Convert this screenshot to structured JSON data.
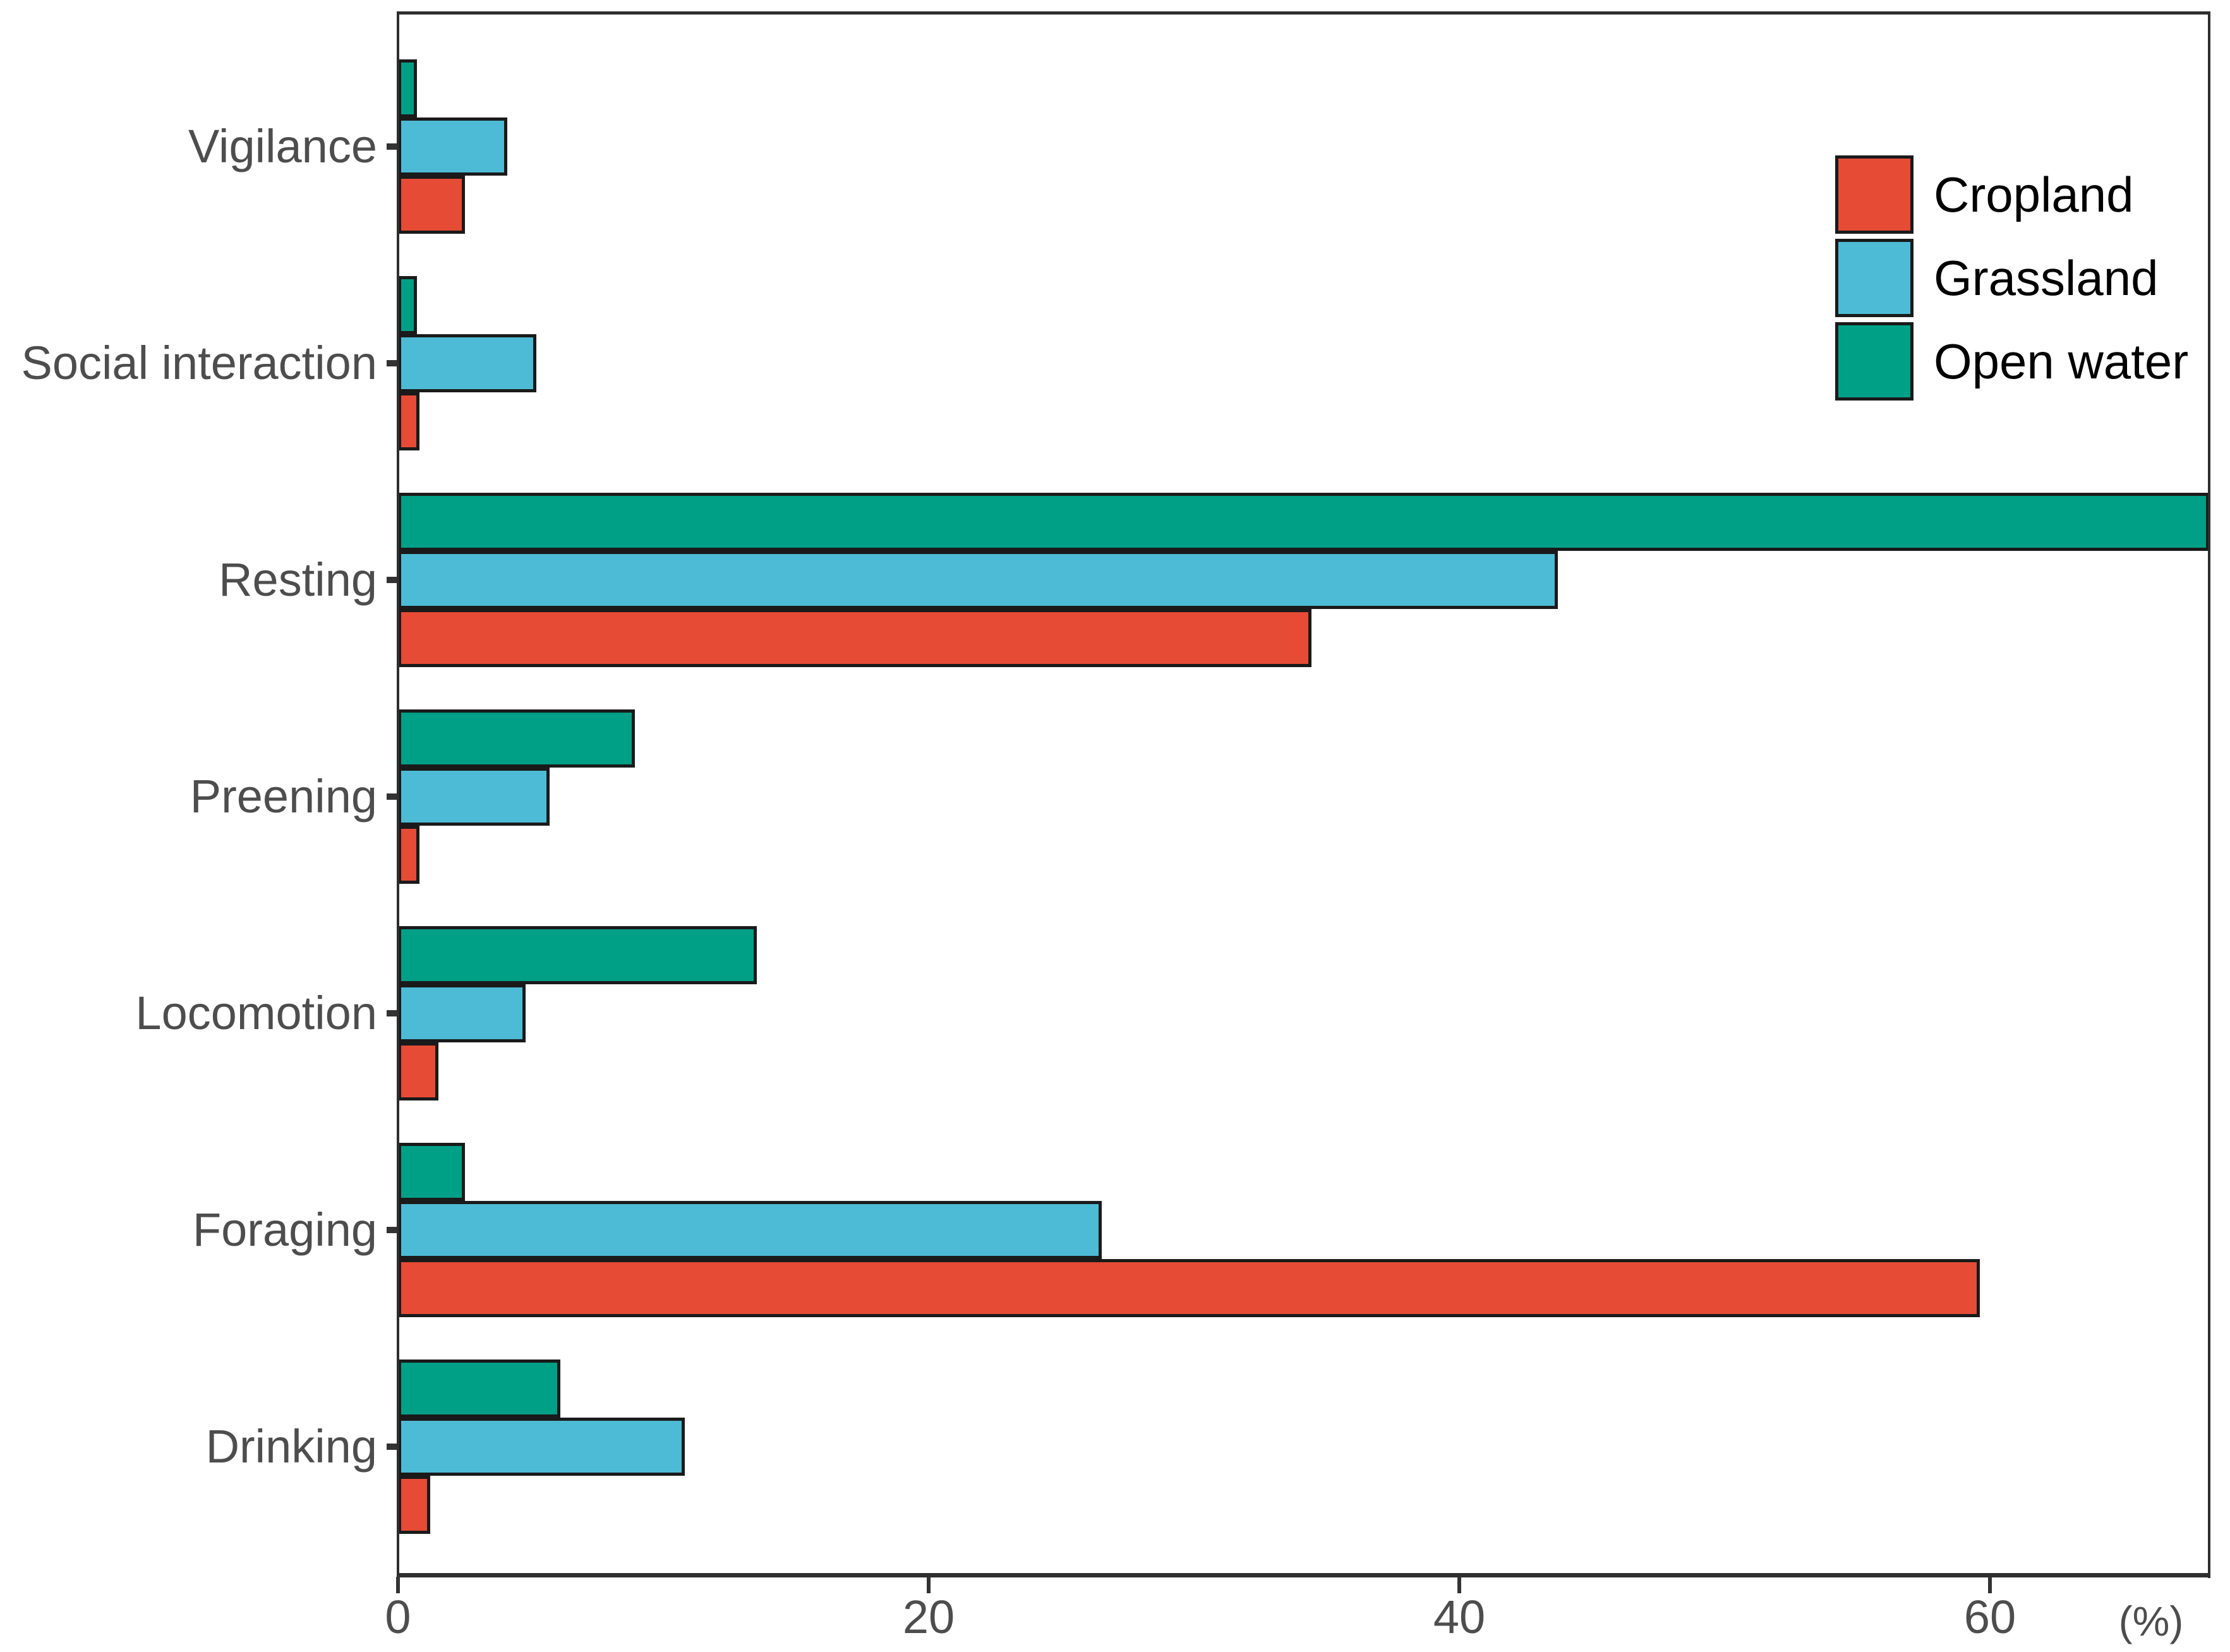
{
  "chart_data": {
    "type": "bar",
    "orientation": "horizontal",
    "title": "",
    "categories": [
      "Vigilance",
      "Social interaction",
      "Resting",
      "Preening",
      "Locomotion",
      "Foraging",
      "Drinking"
    ],
    "series": [
      {
        "name": "Cropland",
        "color": "#E64B35",
        "values": [
          2.4,
          0.7,
          34.3,
          0.7,
          1.4,
          59.5,
          1.1
        ]
      },
      {
        "name": "Grassland",
        "color": "#4DBBD5",
        "values": [
          4.0,
          5.1,
          43.6,
          5.6,
          4.7,
          26.4,
          10.7
        ]
      },
      {
        "name": "Open water",
        "color": "#00A087",
        "values": [
          0.6,
          0.6,
          68.5,
          8.8,
          13.4,
          2.4,
          6.0
        ]
      }
    ],
    "bar_order_top_to_bottom_within_group": [
      "Open water",
      "Grassland",
      "Cropland"
    ],
    "x_axis": {
      "tick_values": [
        0,
        20,
        40,
        60
      ],
      "tick_labels": [
        "0",
        "20",
        "40",
        "60"
      ],
      "unit_label": "(%)",
      "min": 0,
      "max": 68.3
    },
    "y_axis": {
      "label": ""
    },
    "legend": {
      "position": "top-right",
      "entries": [
        "Cropland",
        "Grassland",
        "Open water"
      ]
    },
    "grid": false,
    "note": "Open water Resting bar is clipped at the right panel edge"
  },
  "style": {
    "background_color": "#FFFFFF",
    "axis_text_color": "#4D4D4D",
    "legend_text_color": "#000000",
    "panel_border_color": "#2E2E2E",
    "tick_mark_color": "#333333",
    "bar_border_color": "#1A1A1A"
  }
}
